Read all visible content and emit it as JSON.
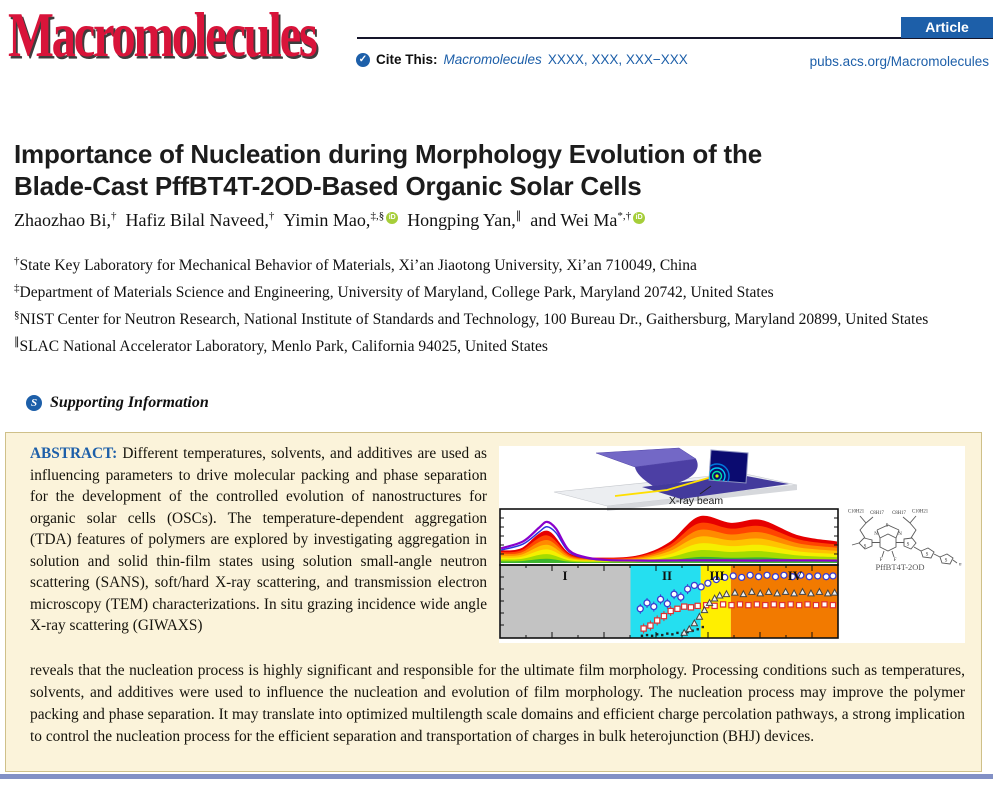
{
  "header": {
    "journal_logo": "Macromolecules",
    "article_badge": "Article",
    "cite_prefix": "Cite This:",
    "cite_journal": "Macromolecules",
    "cite_rest": "XXXX, XXX, XXX−XXX",
    "site_url": "pubs.acs.org/Macromolecules"
  },
  "icons": {
    "cite_check": "✓",
    "supporting": "S",
    "orcid": "iD"
  },
  "title": {
    "lines": [
      "Importance of Nucleation during Morphology Evolution of the",
      "Blade-Cast PffBT4T-2OD-Based Organic Solar Cells"
    ]
  },
  "authors": [
    {
      "name": "Zhaozhao Bi,",
      "sup": "†",
      "orcid": false
    },
    {
      "name": "Hafiz Bilal Naveed,",
      "sup": "†",
      "orcid": false
    },
    {
      "name": "Yimin Mao,",
      "sup": "‡,§",
      "orcid": true
    },
    {
      "name": "Hongping Yan,",
      "sup": "∥",
      "orcid": false
    },
    {
      "name": "and Wei Ma",
      "sup": "*,†",
      "orcid": true
    }
  ],
  "affiliations": [
    {
      "sup": "†",
      "text": "State Key Laboratory for Mechanical Behavior of Materials, Xi’an Jiaotong University, Xi’an 710049, China"
    },
    {
      "sup": "‡",
      "text": "Department of Materials Science and Engineering, University of Maryland, College Park, Maryland 20742, United States"
    },
    {
      "sup": "§",
      "text": "NIST Center for Neutron Research, National Institute of Standards and Technology, 100 Bureau Dr., Gaithersburg, Maryland 20899, United States"
    },
    {
      "sup": "∥",
      "text": "SLAC National Accelerator Laboratory, Menlo Park, California 94025, United States"
    }
  ],
  "supporting_label": "Supporting Information",
  "abstract": {
    "heading": "ABSTRACT:",
    "col_text": "Different temperatures, solvents, and additives are used as influencing parameters to drive molecular packing and phase separation for the development of the controlled evolution of nanostructures for organic solar cells (OSCs). The temperature-dependent aggregation (TDA) features of polymers are explored by investigating aggregation in solution and solid thin-film states using solution small-angle neutron scattering (SANS), soft/hard X-ray scattering, and transmission electron microscopy (TEM) characterizations. In situ grazing incidence wide angle X-ray scattering (GIWAXS)",
    "full_text": "reveals that the nucleation process is highly significant and responsible for the ultimate film morphology. Processing conditions such as temperatures, solvents, and additives were used to influence the nucleation and evolution of film morphology. The nucleation process may improve the polymer packing and phase separation. It may translate into optimized multilength scale domains and efficient charge percolation pathways, a strong implication to control the nucleation process for the efficient separation and transportation of charges in bulk heterojunction (BHJ) devices."
  },
  "figure": {
    "beam_label": "X-ray beam",
    "molecule_label": "PffBT4T-2OD",
    "chains": [
      "C10H21",
      "C8H17",
      "C8H17",
      "C10H21"
    ],
    "regions": [
      "I",
      "II",
      "III",
      "IV"
    ],
    "region_colors": [
      "#c3c3c3",
      "#25dff0",
      "#ffef00",
      "#f27a00"
    ],
    "spectrum_colors": [
      "#e60000",
      "#ff4500",
      "#ff8a00",
      "#ffc300",
      "#f5ef00",
      "#a4dc00",
      "#3cb52f"
    ],
    "line_colors": [
      "#8a00cc",
      "#2a35dd"
    ],
    "series": [
      {
        "shape": "dot",
        "color": "#222222",
        "err": 0,
        "pts": [
          [
            0.42,
            0.97
          ],
          [
            0.435,
            0.96
          ],
          [
            0.45,
            0.97
          ],
          [
            0.465,
            0.95
          ],
          [
            0.48,
            0.96
          ],
          [
            0.495,
            0.94
          ],
          [
            0.51,
            0.95
          ],
          [
            0.525,
            0.93
          ],
          [
            0.54,
            0.94
          ],
          [
            0.555,
            0.92
          ],
          [
            0.57,
            0.9
          ],
          [
            0.585,
            0.88
          ],
          [
            0.6,
            0.85
          ]
        ]
      },
      {
        "shape": "square",
        "color": "#e03030",
        "err": 5,
        "pts": [
          [
            0.425,
            0.87
          ],
          [
            0.445,
            0.83
          ],
          [
            0.465,
            0.76
          ],
          [
            0.485,
            0.7
          ],
          [
            0.505,
            0.63
          ],
          [
            0.525,
            0.6
          ],
          [
            0.545,
            0.57
          ],
          [
            0.565,
            0.58
          ],
          [
            0.585,
            0.56
          ],
          [
            0.61,
            0.55
          ],
          [
            0.635,
            0.56
          ],
          [
            0.66,
            0.54
          ],
          [
            0.685,
            0.55
          ],
          [
            0.71,
            0.54
          ],
          [
            0.735,
            0.55
          ],
          [
            0.76,
            0.54
          ],
          [
            0.785,
            0.55
          ],
          [
            0.81,
            0.54
          ],
          [
            0.835,
            0.55
          ],
          [
            0.86,
            0.54
          ],
          [
            0.885,
            0.55
          ],
          [
            0.91,
            0.54
          ],
          [
            0.935,
            0.55
          ],
          [
            0.96,
            0.54
          ],
          [
            0.985,
            0.55
          ]
        ]
      },
      {
        "shape": "triangle",
        "color": "#444444",
        "err": 0,
        "pts": [
          [
            0.545,
            0.93
          ],
          [
            0.56,
            0.88
          ],
          [
            0.575,
            0.8
          ],
          [
            0.59,
            0.71
          ],
          [
            0.605,
            0.62
          ],
          [
            0.62,
            0.52
          ],
          [
            0.635,
            0.46
          ],
          [
            0.65,
            0.42
          ],
          [
            0.67,
            0.4
          ],
          [
            0.695,
            0.38
          ],
          [
            0.72,
            0.4
          ],
          [
            0.745,
            0.37
          ],
          [
            0.77,
            0.39
          ],
          [
            0.795,
            0.37
          ],
          [
            0.82,
            0.39
          ],
          [
            0.845,
            0.37
          ],
          [
            0.87,
            0.39
          ],
          [
            0.895,
            0.37
          ],
          [
            0.92,
            0.39
          ],
          [
            0.945,
            0.37
          ],
          [
            0.97,
            0.39
          ],
          [
            0.99,
            0.38
          ]
        ]
      },
      {
        "shape": "circle",
        "color": "#3b3bd0",
        "err": 8,
        "pts": [
          [
            0.415,
            0.6
          ],
          [
            0.435,
            0.52
          ],
          [
            0.455,
            0.57
          ],
          [
            0.475,
            0.47
          ],
          [
            0.495,
            0.53
          ],
          [
            0.515,
            0.4
          ],
          [
            0.535,
            0.44
          ],
          [
            0.555,
            0.33
          ],
          [
            0.575,
            0.28
          ],
          [
            0.595,
            0.3
          ],
          [
            0.615,
            0.25
          ],
          [
            0.64,
            0.2
          ],
          [
            0.665,
            0.17
          ],
          [
            0.69,
            0.15
          ],
          [
            0.715,
            0.17
          ],
          [
            0.74,
            0.14
          ],
          [
            0.765,
            0.16
          ],
          [
            0.79,
            0.14
          ],
          [
            0.815,
            0.16
          ],
          [
            0.84,
            0.14
          ],
          [
            0.865,
            0.16
          ],
          [
            0.89,
            0.14
          ],
          [
            0.915,
            0.16
          ],
          [
            0.94,
            0.15
          ],
          [
            0.965,
            0.16
          ],
          [
            0.985,
            0.15
          ]
        ]
      }
    ]
  },
  "colors": {
    "acs_blue": "#1d5fa9",
    "logo_red": "#d8143a",
    "abstract_bg": "#fbf3da",
    "abstract_border": "#cfc089",
    "divider_bar": "#8290c5",
    "orcid_green": "#a6ce39"
  }
}
